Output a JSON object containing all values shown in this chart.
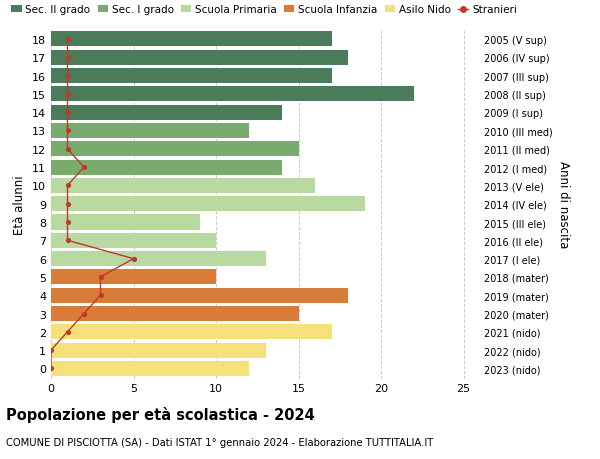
{
  "ages": [
    18,
    17,
    16,
    15,
    14,
    13,
    12,
    11,
    10,
    9,
    8,
    7,
    6,
    5,
    4,
    3,
    2,
    1,
    0
  ],
  "values": [
    17,
    18,
    17,
    22,
    14,
    12,
    15,
    14,
    16,
    19,
    9,
    10,
    13,
    10,
    18,
    15,
    17,
    13,
    12
  ],
  "stranieri": [
    1,
    1,
    1,
    1,
    1,
    1,
    1,
    2,
    1,
    1,
    1,
    1,
    5,
    3,
    3,
    2,
    1,
    0,
    0
  ],
  "right_labels": [
    "2005 (V sup)",
    "2006 (IV sup)",
    "2007 (III sup)",
    "2008 (II sup)",
    "2009 (I sup)",
    "2010 (III med)",
    "2011 (II med)",
    "2012 (I med)",
    "2013 (V ele)",
    "2014 (IV ele)",
    "2015 (III ele)",
    "2016 (II ele)",
    "2017 (I ele)",
    "2018 (mater)",
    "2019 (mater)",
    "2020 (mater)",
    "2021 (nido)",
    "2022 (nido)",
    "2023 (nido)"
  ],
  "bar_colors": [
    "#4a7c59",
    "#4a7c59",
    "#4a7c59",
    "#4a7c59",
    "#4a7c59",
    "#7aab6e",
    "#7aab6e",
    "#7aab6e",
    "#b8d9a0",
    "#b8d9a0",
    "#b8d9a0",
    "#b8d9a0",
    "#b8d9a0",
    "#d97c3a",
    "#d97c3a",
    "#d97c3a",
    "#f5e07a",
    "#f5e07a",
    "#f5e07a"
  ],
  "legend_colors": [
    "#4a7c59",
    "#7aab6e",
    "#b8d9a0",
    "#d97c3a",
    "#f5e07a",
    "#c0392b"
  ],
  "legend_labels": [
    "Sec. II grado",
    "Sec. I grado",
    "Scuola Primaria",
    "Scuola Infanzia",
    "Asilo Nido",
    "Stranieri"
  ],
  "title": "Popolazione per età scolastica - 2024",
  "subtitle": "COMUNE DI PISCIOTTA (SA) - Dati ISTAT 1° gennaio 2024 - Elaborazione TUTTITALIA.IT",
  "ylabel": "Età alunni",
  "right_ylabel": "Anni di nascita",
  "xlim": [
    0,
    26
  ],
  "ylim": [
    -0.55,
    18.55
  ],
  "xticks": [
    0,
    5,
    10,
    15,
    20,
    25
  ],
  "background_color": "#ffffff",
  "grid_color": "#cccccc",
  "stranieri_color": "#c0392b",
  "bar_height": 0.82
}
